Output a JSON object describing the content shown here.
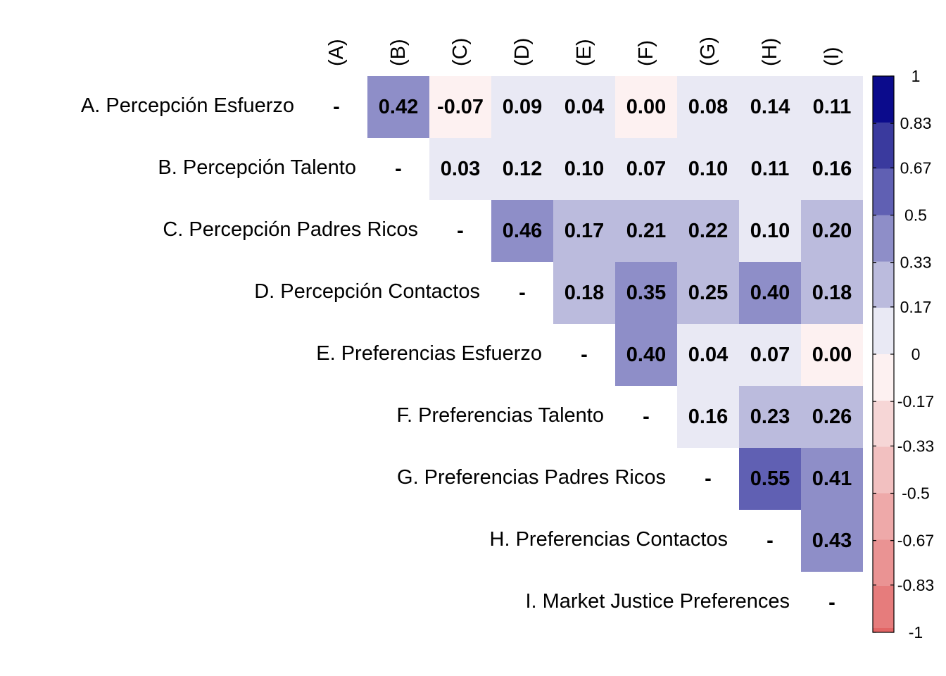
{
  "chart_data": {
    "type": "heatmap",
    "row_labels": [
      "A. Percepción Esfuerzo",
      "B. Percepción Talento",
      "C. Percepción Padres Ricos",
      "D. Percepción Contactos",
      "E. Preferencias Esfuerzo",
      "F. Preferencias Talento",
      "G. Preferencias Padres Ricos",
      "H. Preferencias Contactos",
      "I. Market Justice Preferences"
    ],
    "column_labels": [
      "(A)",
      "(B)",
      "(C)",
      "(D)",
      "(E)",
      "(F)",
      "(G)",
      "(H)",
      "(I)"
    ],
    "diagonal_symbol": "-",
    "values": [
      [
        null,
        0.42,
        -0.07,
        0.09,
        0.04,
        0.0,
        0.08,
        0.14,
        0.11
      ],
      [
        null,
        null,
        0.03,
        0.12,
        0.1,
        0.07,
        0.1,
        0.11,
        0.16
      ],
      [
        null,
        null,
        null,
        0.46,
        0.17,
        0.21,
        0.22,
        0.1,
        0.2
      ],
      [
        null,
        null,
        null,
        null,
        0.18,
        0.35,
        0.25,
        0.4,
        0.18
      ],
      [
        null,
        null,
        null,
        null,
        null,
        0.4,
        0.04,
        0.07,
        0.0
      ],
      [
        null,
        null,
        null,
        null,
        null,
        null,
        0.16,
        0.23,
        0.26
      ],
      [
        null,
        null,
        null,
        null,
        null,
        null,
        null,
        0.55,
        0.41
      ],
      [
        null,
        null,
        null,
        null,
        null,
        null,
        null,
        null,
        0.43
      ],
      [
        null,
        null,
        null,
        null,
        null,
        null,
        null,
        null,
        null
      ]
    ],
    "value_labels": [
      [
        null,
        "0.42",
        "-0.07",
        "0.09",
        "0.04",
        "0.00",
        "0.08",
        "0.14",
        "0.11"
      ],
      [
        null,
        null,
        "0.03",
        "0.12",
        "0.10",
        "0.07",
        "0.10",
        "0.11",
        "0.16"
      ],
      [
        null,
        null,
        null,
        "0.46",
        "0.17",
        "0.21",
        "0.22",
        "0.10",
        "0.20"
      ],
      [
        null,
        null,
        null,
        null,
        "0.18",
        "0.35",
        "0.25",
        "0.40",
        "0.18"
      ],
      [
        null,
        null,
        null,
        null,
        null,
        "0.40",
        "0.04",
        "0.07",
        "0.00"
      ],
      [
        null,
        null,
        null,
        null,
        null,
        null,
        "0.16",
        "0.23",
        "0.26"
      ],
      [
        null,
        null,
        null,
        null,
        null,
        null,
        null,
        "0.55",
        "0.41"
      ],
      [
        null,
        null,
        null,
        null,
        null,
        null,
        null,
        null,
        "0.43"
      ],
      [
        null,
        null,
        null,
        null,
        null,
        null,
        null,
        null,
        null
      ]
    ],
    "colorbar": {
      "range": [
        -1,
        1
      ],
      "ticks": [
        1,
        0.83,
        0.67,
        0.5,
        0.33,
        0.17,
        0,
        -0.17,
        -0.33,
        -0.5,
        -0.67,
        -0.83,
        -1
      ],
      "tick_labels": [
        "1",
        "0.83",
        "0.67",
        "0.5",
        "0.33",
        "0.17",
        "0",
        "-0.17",
        "-0.33",
        "-0.5",
        "-0.67",
        "-0.83",
        "-1"
      ],
      "bin_colors_top_to_bottom": [
        "#0b0b8c",
        "#3a3a9e",
        "#6060b3",
        "#8e8ec8",
        "#bbbbdd",
        "#e9e9f4",
        "#fdf1f1",
        "#f6d6d6",
        "#f2c0c0",
        "#eea9a9",
        "#ea9393",
        "#e67c7c"
      ],
      "bottom_color": "#e26565",
      "border_color": "#000000"
    },
    "legend_position": "right"
  }
}
